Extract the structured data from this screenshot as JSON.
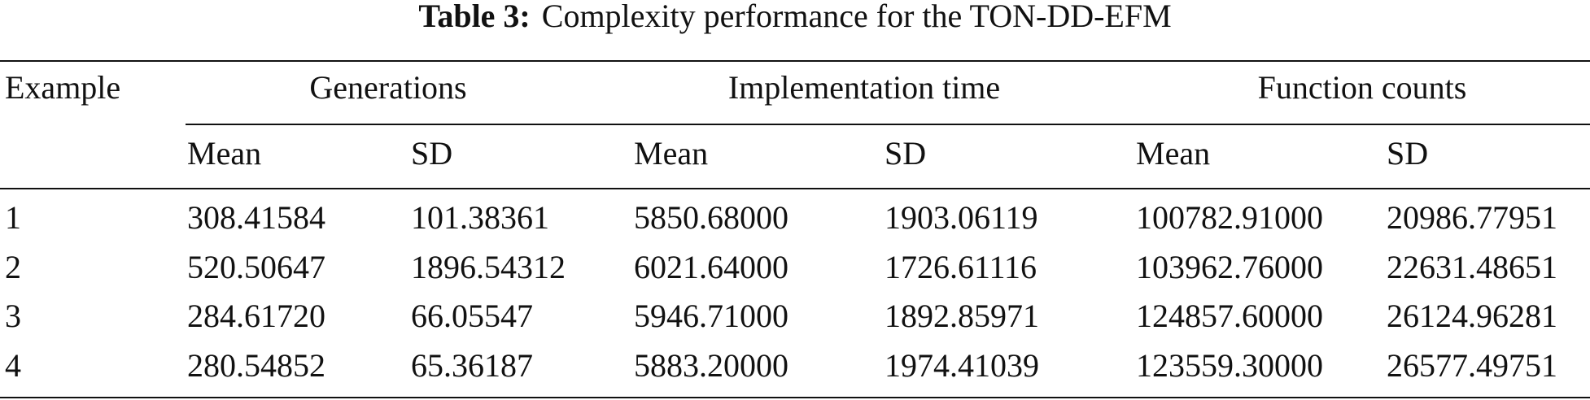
{
  "caption": {
    "label": "Table 3:",
    "text": "Complexity performance for the TON-DD-EFM"
  },
  "table": {
    "row_header": "Example",
    "groups": [
      "Generations",
      "Implementation time",
      "Function counts"
    ],
    "subheaders": [
      "Mean",
      "SD",
      "Mean",
      "SD",
      "Mean",
      "SD"
    ],
    "rows": [
      [
        "1",
        "308.41584",
        "101.38361",
        "5850.68000",
        "1903.06119",
        "100782.91000",
        "20986.77951"
      ],
      [
        "2",
        "520.50647",
        "1896.54312",
        "6021.64000",
        "1726.61116",
        "103962.76000",
        "22631.48651"
      ],
      [
        "3",
        "284.61720",
        "66.05547",
        "5946.71000",
        "1892.85971",
        "124857.60000",
        "26124.96281"
      ],
      [
        "4",
        "280.54852",
        "65.36187",
        "5883.20000",
        "1974.41039",
        "123559.30000",
        "26577.49751"
      ]
    ]
  }
}
